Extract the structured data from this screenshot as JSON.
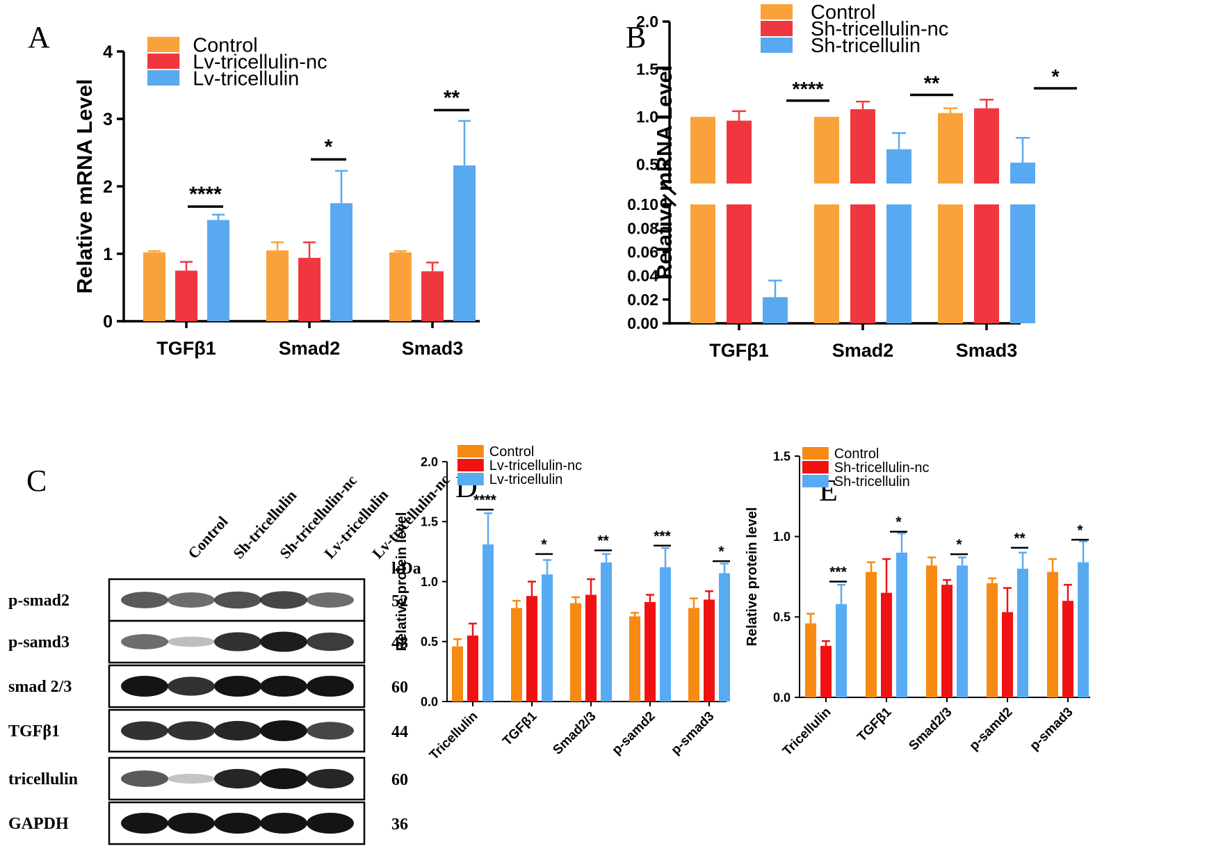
{
  "colors": {
    "control": "#F9A23A",
    "red": "#F0373F",
    "blue": "#59A9F0",
    "control_de": "#F68A12",
    "red_de": "#F01212",
    "blue_de": "#58ABF2",
    "band": "#141414"
  },
  "panel_letters": {
    "A": "A",
    "B": "B",
    "C": "C",
    "D": "D",
    "E": "E"
  },
  "chart_data": [
    {
      "panel": "A",
      "type": "bar",
      "ylabel": "Relative  mRNA Level",
      "categories": [
        "TGFβ1",
        "Smad2",
        "Smad3"
      ],
      "ylim": [
        0,
        4
      ],
      "yticks": [
        "0",
        "1",
        "2",
        "3",
        "4"
      ],
      "series": [
        {
          "name": "Control",
          "values": [
            1.02,
            1.05,
            1.02
          ],
          "errors": [
            0.02,
            0.12,
            0.02
          ]
        },
        {
          "name": "Lv-tricellulin-nc",
          "values": [
            0.75,
            0.94,
            0.74
          ],
          "errors": [
            0.13,
            0.23,
            0.13
          ]
        },
        {
          "name": "Lv-tricellulin",
          "values": [
            1.5,
            1.75,
            2.31
          ],
          "errors": [
            0.08,
            0.48,
            0.66
          ]
        }
      ],
      "significance": [
        {
          "category": "TGFβ1",
          "label": "****",
          "y": 1.7
        },
        {
          "category": "Smad2",
          "label": "*",
          "y": 2.4
        },
        {
          "category": "Smad3",
          "label": "**",
          "y": 3.13
        }
      ]
    },
    {
      "panel": "B",
      "type": "bar",
      "broken_axis": true,
      "ylabel": "Relative  mRNA Level",
      "categories": [
        "TGFβ1",
        "Smad2",
        "Smad3"
      ],
      "ylim_upper": [
        0.3,
        2.0
      ],
      "yticks_upper": [
        "0.5",
        "1.0",
        "1.5",
        "2.0"
      ],
      "ylim_lower": [
        0,
        0.1
      ],
      "yticks_lower": [
        "0.00",
        "0.02",
        "0.04",
        "0.06",
        "0.08",
        "0.10"
      ],
      "series": [
        {
          "name": "Control",
          "values": [
            1.0,
            1.0,
            1.04
          ],
          "errors": [
            0.0,
            0.0,
            0.05
          ]
        },
        {
          "name": "Sh-tricellulin-nc",
          "values": [
            0.96,
            1.08,
            1.09
          ],
          "errors": [
            0.1,
            0.08,
            0.09
          ]
        },
        {
          "name": "Sh-tricellulin",
          "values": [
            0.022,
            0.66,
            0.52
          ],
          "errors": [
            0.014,
            0.17,
            0.26
          ]
        }
      ],
      "significance": [
        {
          "category": "TGFβ1",
          "label": "****",
          "y": 1.17
        },
        {
          "category": "Smad2",
          "label": "**",
          "y": 1.23
        },
        {
          "category": "Smad3",
          "label": "*",
          "y": 1.3
        }
      ]
    },
    {
      "panel": "D",
      "type": "bar",
      "ylabel": "Relative protein level",
      "categories": [
        "Tricellulin",
        "TGFβ1",
        "Smad2/3",
        "p-samd2",
        "p-smad3"
      ],
      "ylim": [
        0,
        2.0
      ],
      "yticks": [
        "0.0",
        "0.5",
        "1.0",
        "1.5",
        "2.0"
      ],
      "series": [
        {
          "name": "Control",
          "values": [
            0.46,
            0.78,
            0.82,
            0.71,
            0.78
          ],
          "errors": [
            0.06,
            0.06,
            0.05,
            0.03,
            0.08
          ]
        },
        {
          "name": "Lv-tricellulin-nc",
          "values": [
            0.55,
            0.88,
            0.89,
            0.83,
            0.85
          ],
          "errors": [
            0.1,
            0.12,
            0.13,
            0.06,
            0.07
          ]
        },
        {
          "name": "Lv-tricellulin",
          "values": [
            1.31,
            1.06,
            1.16,
            1.12,
            1.07
          ],
          "errors": [
            0.26,
            0.12,
            0.07,
            0.16,
            0.08
          ]
        }
      ],
      "significance": [
        {
          "category": "Tricellulin",
          "label": "****",
          "y": 1.6
        },
        {
          "category": "TGFβ1",
          "label": "*",
          "y": 1.23
        },
        {
          "category": "Smad2/3",
          "label": "**",
          "y": 1.26
        },
        {
          "category": "p-samd2",
          "label": "***",
          "y": 1.3
        },
        {
          "category": "p-smad3",
          "label": "*",
          "y": 1.17
        }
      ]
    },
    {
      "panel": "E",
      "type": "bar",
      "ylabel": "Relative protein level",
      "categories": [
        "Tricellulin",
        "TGFβ1",
        "Smad2/3",
        "p-samd2",
        "p-smad3"
      ],
      "ylim": [
        0,
        1.5
      ],
      "yticks": [
        "0.0",
        "0.5",
        "1.0",
        "1.5"
      ],
      "series": [
        {
          "name": "Control",
          "values": [
            0.46,
            0.78,
            0.82,
            0.71,
            0.78
          ],
          "errors": [
            0.06,
            0.06,
            0.05,
            0.03,
            0.08
          ]
        },
        {
          "name": "Sh-tricellulin-nc",
          "values": [
            0.32,
            0.65,
            0.7,
            0.53,
            0.6
          ],
          "errors": [
            0.03,
            0.21,
            0.03,
            0.15,
            0.1
          ]
        },
        {
          "name": "Sh-tricellulin",
          "values": [
            0.58,
            0.9,
            0.82,
            0.8,
            0.84
          ],
          "errors": [
            0.12,
            0.12,
            0.05,
            0.1,
            0.13
          ]
        }
      ],
      "significance": [
        {
          "category": "Tricellulin",
          "label": "***",
          "y": 0.72
        },
        {
          "category": "TGFβ1",
          "label": "*",
          "y": 1.03
        },
        {
          "category": "Smad2/3",
          "label": "*",
          "y": 0.89
        },
        {
          "category": "p-samd2",
          "label": "**",
          "y": 0.93
        },
        {
          "category": "p-smad3",
          "label": "*",
          "y": 0.98
        }
      ]
    }
  ],
  "western_blot": {
    "panel": "C",
    "lanes": [
      "Control",
      "Sh-tricellulin",
      "Sh-tricellulin-nc",
      "Lv-tricellulin",
      "Lv-tricellulin-nc"
    ],
    "kda_header": "kDa",
    "rows": [
      {
        "protein": "p-smad2",
        "kda": "52",
        "intensity": [
          0.65,
          0.55,
          0.7,
          0.75,
          0.55
        ]
      },
      {
        "protein": "p-samd3",
        "kda": "48",
        "intensity": [
          0.55,
          0.15,
          0.85,
          0.95,
          0.8
        ]
      },
      {
        "protein": "smad 2/3",
        "kda": "60",
        "intensity": [
          1.0,
          0.85,
          1.0,
          1.0,
          1.0
        ]
      },
      {
        "protein": "TGFβ1",
        "kda": "44",
        "intensity": [
          0.85,
          0.85,
          0.9,
          1.0,
          0.75
        ]
      },
      {
        "protein": "tricellulin",
        "kda": "60",
        "intensity": [
          0.65,
          0.12,
          0.9,
          1.0,
          0.9
        ]
      },
      {
        "protein": "GAPDH",
        "kda": "36",
        "intensity": [
          1.0,
          1.0,
          1.0,
          1.0,
          1.0
        ]
      }
    ]
  }
}
